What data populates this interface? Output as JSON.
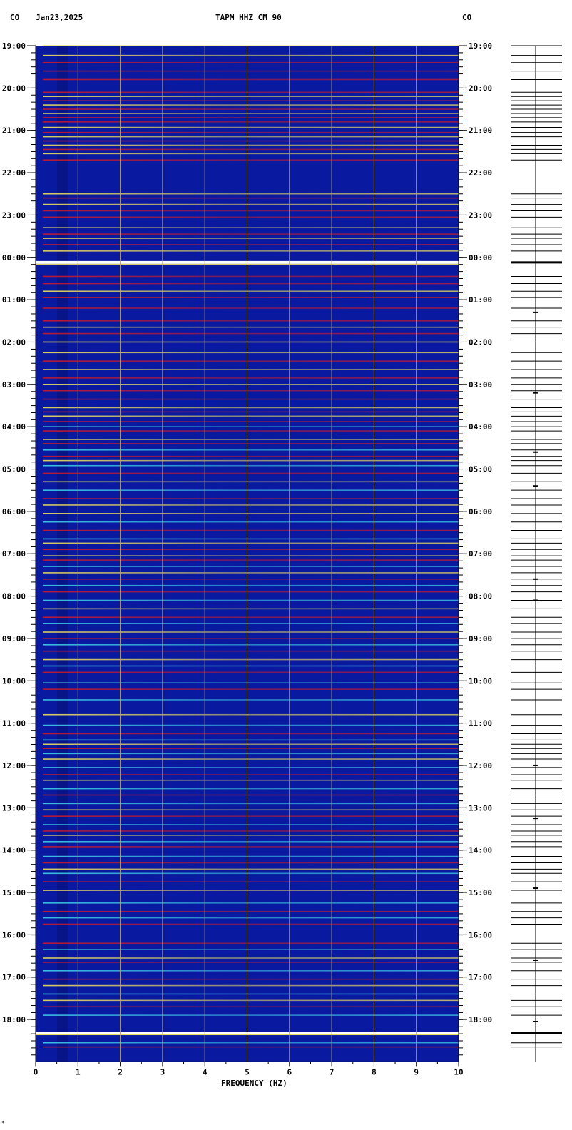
{
  "header": {
    "network_left": "CO",
    "date": "Jan23,2025",
    "station": "TAPM HHZ CM 90",
    "network_right": "CO"
  },
  "footer_mark": "*",
  "chart_data": {
    "type": "heatmap",
    "title": "TAPM HHZ CM 90",
    "xlabel": "FREQUENCY (HZ)",
    "xlim": [
      0,
      10
    ],
    "x_ticks": [
      "0",
      "1",
      "2",
      "3",
      "4",
      "5",
      "6",
      "7",
      "8",
      "9",
      "10"
    ],
    "y_ticks": [
      "19:00",
      "20:00",
      "21:00",
      "22:00",
      "23:00",
      "00:00",
      "01:00",
      "02:00",
      "03:00",
      "04:00",
      "05:00",
      "06:00",
      "07:00",
      "08:00",
      "09:00",
      "10:00",
      "11:00",
      "12:00",
      "13:00",
      "14:00",
      "15:00",
      "16:00",
      "17:00",
      "18:00"
    ],
    "y_range_hours": [
      19.0,
      43.0
    ],
    "grid": true,
    "colors": {
      "background": "#0a1aa0",
      "grid": "#b0a070",
      "band_red": "#c81a2e",
      "band_yellow": "#f0e060",
      "band_cyan": "#40d0e8",
      "band_white": "#ffffff"
    },
    "bright_bands": [
      24.12,
      42.32
    ],
    "bands": [
      {
        "t": 19.0,
        "c": "y"
      },
      {
        "t": 19.23,
        "c": "y"
      },
      {
        "t": 19.4,
        "c": "r"
      },
      {
        "t": 19.6,
        "c": "r"
      },
      {
        "t": 19.8,
        "c": "r"
      },
      {
        "t": 20.1,
        "c": "r"
      },
      {
        "t": 20.2,
        "c": "y"
      },
      {
        "t": 20.3,
        "c": "r"
      },
      {
        "t": 20.4,
        "c": "y"
      },
      {
        "t": 20.5,
        "c": "r"
      },
      {
        "t": 20.6,
        "c": "y"
      },
      {
        "t": 20.7,
        "c": "r"
      },
      {
        "t": 20.8,
        "c": "r"
      },
      {
        "t": 20.93,
        "c": "y"
      },
      {
        "t": 21.05,
        "c": "r"
      },
      {
        "t": 21.15,
        "c": "y"
      },
      {
        "t": 21.25,
        "c": "r"
      },
      {
        "t": 21.35,
        "c": "y"
      },
      {
        "t": 21.45,
        "c": "r"
      },
      {
        "t": 21.55,
        "c": "y"
      },
      {
        "t": 21.7,
        "c": "r"
      },
      {
        "t": 22.5,
        "c": "y"
      },
      {
        "t": 22.6,
        "c": "r"
      },
      {
        "t": 22.75,
        "c": "y"
      },
      {
        "t": 22.9,
        "c": "r"
      },
      {
        "t": 23.05,
        "c": "r"
      },
      {
        "t": 23.3,
        "c": "y"
      },
      {
        "t": 23.45,
        "c": "r"
      },
      {
        "t": 23.55,
        "c": "y"
      },
      {
        "t": 23.7,
        "c": "r"
      },
      {
        "t": 23.85,
        "c": "y"
      },
      {
        "t": 24.45,
        "c": "r"
      },
      {
        "t": 24.62,
        "c": "r"
      },
      {
        "t": 24.8,
        "c": "y"
      },
      {
        "t": 24.95,
        "c": "r"
      },
      {
        "t": 25.2,
        "c": "r"
      },
      {
        "t": 25.5,
        "c": "r"
      },
      {
        "t": 25.65,
        "c": "y"
      },
      {
        "t": 25.8,
        "c": "r"
      },
      {
        "t": 26.0,
        "c": "y"
      },
      {
        "t": 26.25,
        "c": "y"
      },
      {
        "t": 26.45,
        "c": "r"
      },
      {
        "t": 26.65,
        "c": "y"
      },
      {
        "t": 26.85,
        "c": "r"
      },
      {
        "t": 27.0,
        "c": "y"
      },
      {
        "t": 27.15,
        "c": "r"
      },
      {
        "t": 27.35,
        "c": "r"
      },
      {
        "t": 27.55,
        "c": "y"
      },
      {
        "t": 27.65,
        "c": "r"
      },
      {
        "t": 27.75,
        "c": "y"
      },
      {
        "t": 27.88,
        "c": "r"
      },
      {
        "t": 28.0,
        "c": "c"
      },
      {
        "t": 28.1,
        "c": "r"
      },
      {
        "t": 28.3,
        "c": "y"
      },
      {
        "t": 28.4,
        "c": "r"
      },
      {
        "t": 28.55,
        "c": "c"
      },
      {
        "t": 28.7,
        "c": "r"
      },
      {
        "t": 28.8,
        "c": "y"
      },
      {
        "t": 28.92,
        "c": "c"
      },
      {
        "t": 29.1,
        "c": "r"
      },
      {
        "t": 29.3,
        "c": "y"
      },
      {
        "t": 29.5,
        "c": "c"
      },
      {
        "t": 29.7,
        "c": "r"
      },
      {
        "t": 29.85,
        "c": "y"
      },
      {
        "t": 30.05,
        "c": "y"
      },
      {
        "t": 30.25,
        "c": "c"
      },
      {
        "t": 30.45,
        "c": "r"
      },
      {
        "t": 30.65,
        "c": "c"
      },
      {
        "t": 30.75,
        "c": "y"
      },
      {
        "t": 30.9,
        "c": "r"
      },
      {
        "t": 31.05,
        "c": "y"
      },
      {
        "t": 31.15,
        "c": "r"
      },
      {
        "t": 31.3,
        "c": "c"
      },
      {
        "t": 31.45,
        "c": "y"
      },
      {
        "t": 31.6,
        "c": "r"
      },
      {
        "t": 31.75,
        "c": "c"
      },
      {
        "t": 31.9,
        "c": "r"
      },
      {
        "t": 32.1,
        "c": "c"
      },
      {
        "t": 32.3,
        "c": "y"
      },
      {
        "t": 32.5,
        "c": "r"
      },
      {
        "t": 32.65,
        "c": "c"
      },
      {
        "t": 32.85,
        "c": "y"
      },
      {
        "t": 33.0,
        "c": "r"
      },
      {
        "t": 33.15,
        "c": "c"
      },
      {
        "t": 33.3,
        "c": "r"
      },
      {
        "t": 33.5,
        "c": "y"
      },
      {
        "t": 33.65,
        "c": "c"
      },
      {
        "t": 33.8,
        "c": "r"
      },
      {
        "t": 34.05,
        "c": "c"
      },
      {
        "t": 34.2,
        "c": "r"
      },
      {
        "t": 34.45,
        "c": "c"
      },
      {
        "t": 34.8,
        "c": "y"
      },
      {
        "t": 35.05,
        "c": "c"
      },
      {
        "t": 35.25,
        "c": "r"
      },
      {
        "t": 35.4,
        "c": "c"
      },
      {
        "t": 35.5,
        "c": "y"
      },
      {
        "t": 35.6,
        "c": "r"
      },
      {
        "t": 35.72,
        "c": "c"
      },
      {
        "t": 35.85,
        "c": "y"
      },
      {
        "t": 36.05,
        "c": "c"
      },
      {
        "t": 36.22,
        "c": "r"
      },
      {
        "t": 36.35,
        "c": "y"
      },
      {
        "t": 36.55,
        "c": "c"
      },
      {
        "t": 36.7,
        "c": "r"
      },
      {
        "t": 36.9,
        "c": "c"
      },
      {
        "t": 37.05,
        "c": "y"
      },
      {
        "t": 37.2,
        "c": "r"
      },
      {
        "t": 37.4,
        "c": "c"
      },
      {
        "t": 37.55,
        "c": "r"
      },
      {
        "t": 37.65,
        "c": "y"
      },
      {
        "t": 37.8,
        "c": "c"
      },
      {
        "t": 37.92,
        "c": "r"
      },
      {
        "t": 38.15,
        "c": "c"
      },
      {
        "t": 38.3,
        "c": "r"
      },
      {
        "t": 38.45,
        "c": "y"
      },
      {
        "t": 38.55,
        "c": "c"
      },
      {
        "t": 38.75,
        "c": "r"
      },
      {
        "t": 38.95,
        "c": "y"
      },
      {
        "t": 39.25,
        "c": "c"
      },
      {
        "t": 39.45,
        "c": "r"
      },
      {
        "t": 39.6,
        "c": "c"
      },
      {
        "t": 39.75,
        "c": "r"
      },
      {
        "t": 40.2,
        "c": "r"
      },
      {
        "t": 40.35,
        "c": "c"
      },
      {
        "t": 40.55,
        "c": "y"
      },
      {
        "t": 40.65,
        "c": "r"
      },
      {
        "t": 40.85,
        "c": "c"
      },
      {
        "t": 41.05,
        "c": "r"
      },
      {
        "t": 41.2,
        "c": "y"
      },
      {
        "t": 41.4,
        "c": "c"
      },
      {
        "t": 41.55,
        "c": "y"
      },
      {
        "t": 41.7,
        "c": "r"
      },
      {
        "t": 41.9,
        "c": "c"
      },
      {
        "t": 42.55,
        "c": "c"
      },
      {
        "t": 42.65,
        "c": "r"
      }
    ]
  }
}
